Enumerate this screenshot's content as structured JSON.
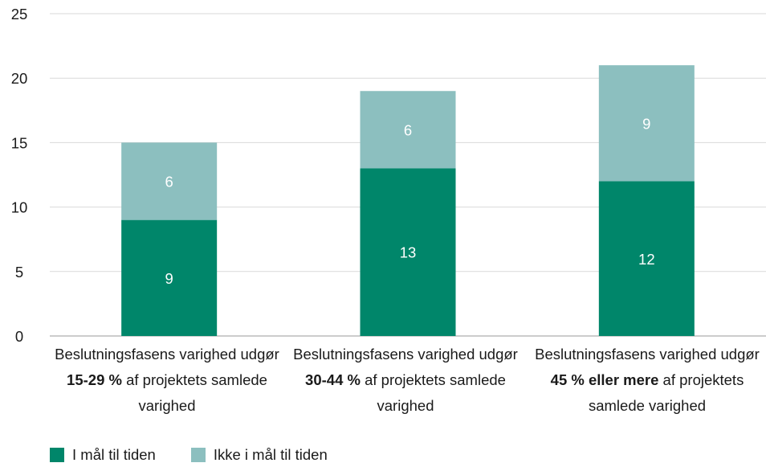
{
  "chart_data": {
    "type": "bar",
    "stacked": true,
    "categories": [
      {
        "pre": "Beslutningsfasens varighed udgør ",
        "bold": "15-29 %",
        "post": " af projektets samlede varighed"
      },
      {
        "pre": "Beslutningsfasens varighed udgør ",
        "bold": "30-44 %",
        "post": " af projektets samlede varighed"
      },
      {
        "pre": "Beslutningsfasens varighed udgør ",
        "bold": "45 % eller mere",
        "post": " af projektets samlede varighed"
      }
    ],
    "series": [
      {
        "name": "I mål til tiden",
        "values": [
          9,
          13,
          12
        ],
        "color": "#00866a"
      },
      {
        "name": "Ikke i mål til tiden",
        "values": [
          6,
          6,
          9
        ],
        "color": "#8cbfbf"
      }
    ],
    "ylim": [
      0,
      25
    ],
    "yticks": [
      "0",
      "5",
      "10",
      "15",
      "20",
      "25"
    ],
    "grid": true,
    "legend_position": "bottom-left",
    "data_label_color": "#ffffff",
    "xlabel": "",
    "ylabel": ""
  }
}
